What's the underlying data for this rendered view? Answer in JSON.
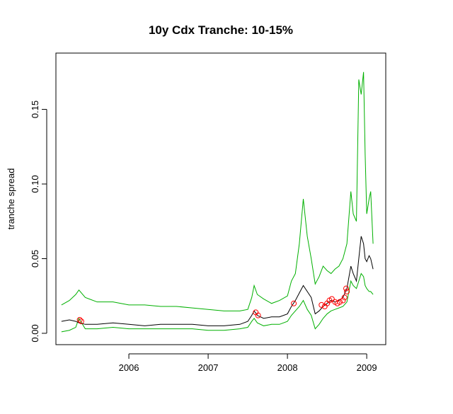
{
  "chart_data": {
    "type": "line",
    "title": "10y Cdx Tranche: 10-15%",
    "y_label": "tranche spread",
    "xlim": [
      2005.08,
      2009.24
    ],
    "xticks": [
      2006,
      2007,
      2008,
      2009
    ],
    "ylim": [
      -0.0076,
      0.1877
    ],
    "yticks": [
      {
        "value": 0,
        "label": "0.00"
      },
      {
        "value": 0.05,
        "label": "0.05"
      },
      {
        "value": 0.1,
        "label": "0.10"
      },
      {
        "value": 0.15,
        "label": "0.15"
      }
    ],
    "x": [
      2005.15,
      2005.25,
      2005.33,
      2005.37,
      2005.45,
      2005.6,
      2005.8,
      2006.0,
      2006.2,
      2006.4,
      2006.6,
      2006.8,
      2007.0,
      2007.2,
      2007.4,
      2007.5,
      2007.55,
      2007.58,
      2007.62,
      2007.7,
      2007.8,
      2007.9,
      2008.0,
      2008.05,
      2008.1,
      2008.15,
      2008.2,
      2008.25,
      2008.3,
      2008.35,
      2008.4,
      2008.45,
      2008.5,
      2008.55,
      2008.6,
      2008.65,
      2008.7,
      2008.75,
      2008.8,
      2008.83,
      2008.87,
      2008.9,
      2008.93,
      2008.96,
      2008.98,
      2009.0,
      2009.03,
      2009.05,
      2009.08
    ],
    "series": [
      {
        "color": "#00b000",
        "values": [
          0.019,
          0.022,
          0.026,
          0.029,
          0.024,
          0.021,
          0.021,
          0.019,
          0.019,
          0.018,
          0.018,
          0.017,
          0.016,
          0.015,
          0.015,
          0.016,
          0.024,
          0.032,
          0.026,
          0.023,
          0.02,
          0.022,
          0.025,
          0.035,
          0.04,
          0.06,
          0.09,
          0.065,
          0.05,
          0.033,
          0.038,
          0.045,
          0.042,
          0.04,
          0.043,
          0.045,
          0.05,
          0.06,
          0.095,
          0.08,
          0.075,
          0.17,
          0.16,
          0.175,
          0.12,
          0.08,
          0.09,
          0.095,
          0.06
        ]
      },
      {
        "color": "#00b000",
        "values": [
          0.001,
          0.002,
          0.004,
          0.01,
          0.003,
          0.003,
          0.004,
          0.003,
          0.003,
          0.003,
          0.003,
          0.003,
          0.002,
          0.002,
          0.003,
          0.004,
          0.008,
          0.01,
          0.007,
          0.005,
          0.006,
          0.006,
          0.008,
          0.012,
          0.015,
          0.018,
          0.022,
          0.016,
          0.012,
          0.003,
          0.006,
          0.01,
          0.013,
          0.015,
          0.016,
          0.017,
          0.018,
          0.021,
          0.035,
          0.032,
          0.03,
          0.035,
          0.04,
          0.038,
          0.032,
          0.03,
          0.028,
          0.028,
          0.026
        ]
      },
      {
        "color": "#000000",
        "values": [
          0.008,
          0.009,
          0.008,
          0.007,
          0.006,
          0.006,
          0.007,
          0.006,
          0.005,
          0.006,
          0.006,
          0.006,
          0.005,
          0.005,
          0.006,
          0.008,
          0.012,
          0.015,
          0.012,
          0.01,
          0.011,
          0.011,
          0.013,
          0.018,
          0.022,
          0.027,
          0.032,
          0.028,
          0.024,
          0.013,
          0.015,
          0.018,
          0.02,
          0.022,
          0.021,
          0.022,
          0.024,
          0.03,
          0.045,
          0.04,
          0.035,
          0.05,
          0.065,
          0.06,
          0.05,
          0.048,
          0.052,
          0.05,
          0.043
        ]
      },
      {
        "type": "scatter",
        "color": "#ff0000",
        "x": [
          2005.38,
          2005.4,
          2007.6,
          2007.63,
          2008.08,
          2008.43,
          2008.47,
          2008.5,
          2008.53,
          2008.56,
          2008.6,
          2008.63,
          2008.66,
          2008.7,
          2008.72,
          2008.74,
          2008.75
        ],
        "values": [
          0.009,
          0.008,
          0.014,
          0.012,
          0.02,
          0.019,
          0.018,
          0.02,
          0.022,
          0.023,
          0.021,
          0.02,
          0.021,
          0.022,
          0.024,
          0.03,
          0.028
        ]
      }
    ]
  }
}
